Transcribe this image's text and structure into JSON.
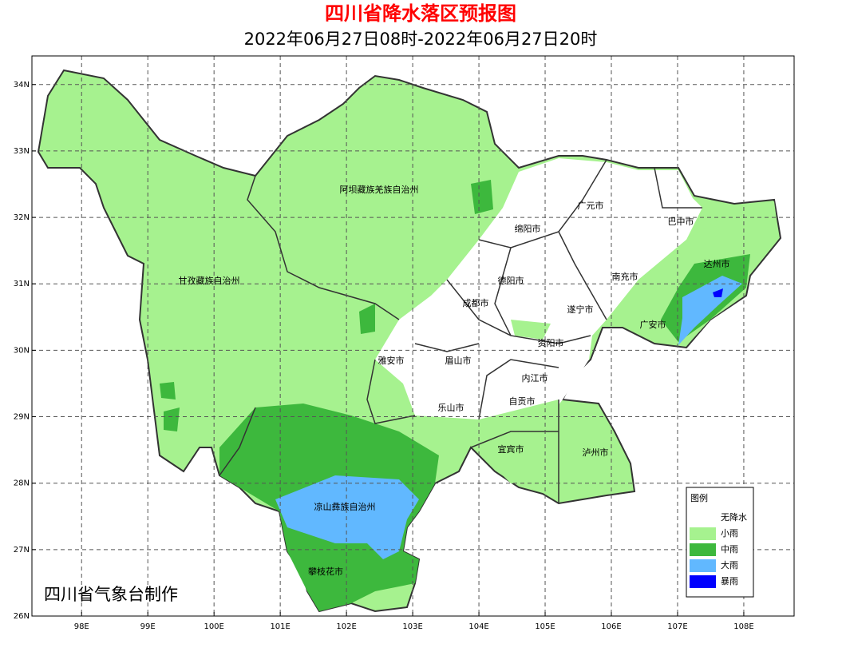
{
  "header": {
    "title": "四川省降水落区预报图",
    "subtitle": "2022年06月27日08时-2022年06月27日20时"
  },
  "map": {
    "lon_range": [
      97.25,
      108.76
    ],
    "lat_range": [
      26,
      34.43
    ],
    "lon_ticks": [
      {
        "value": 98,
        "label": "98E"
      },
      {
        "value": 99,
        "label": "99E"
      },
      {
        "value": 100,
        "label": "100E"
      },
      {
        "value": 101,
        "label": "101E"
      },
      {
        "value": 102,
        "label": "102E"
      },
      {
        "value": 103,
        "label": "103E"
      },
      {
        "value": 104,
        "label": "104E"
      },
      {
        "value": 105,
        "label": "105E"
      },
      {
        "value": 106,
        "label": "106E"
      },
      {
        "value": 107,
        "label": "107E"
      },
      {
        "value": 108,
        "label": "108E"
      }
    ],
    "lat_ticks": [
      {
        "value": 26,
        "label": "26N"
      },
      {
        "value": 27,
        "label": "27N"
      },
      {
        "value": 28,
        "label": "28N"
      },
      {
        "value": 29,
        "label": "29N"
      },
      {
        "value": 30,
        "label": "30N"
      },
      {
        "value": 31,
        "label": "31N"
      },
      {
        "value": 32,
        "label": "32N"
      },
      {
        "value": 33,
        "label": "33N"
      },
      {
        "value": 34,
        "label": "34N"
      }
    ],
    "regions": [
      "阿坝藏族羌族自治州",
      "甘孜藏族自治州",
      "广元市",
      "巴中市",
      "绵阳市",
      "达州市",
      "德阳市",
      "南充市",
      "成都市",
      "遂宁市",
      "广安市",
      "雅安市",
      "眉山市",
      "资阳市",
      "内江市",
      "自贡市",
      "乐山市",
      "宜宾市",
      "泸州市",
      "凉山彝族自治州",
      "攀枝花市"
    ]
  },
  "legend": {
    "title": "图例",
    "items": [
      {
        "label": "无降水",
        "color": "#ffffff"
      },
      {
        "label": "小雨",
        "color": "#a6f28f"
      },
      {
        "label": "中雨",
        "color": "#3db83d"
      },
      {
        "label": "大雨",
        "color": "#61b8ff"
      },
      {
        "label": "暴雨",
        "color": "#0000fe"
      }
    ]
  },
  "credit": "四川省气象台制作"
}
